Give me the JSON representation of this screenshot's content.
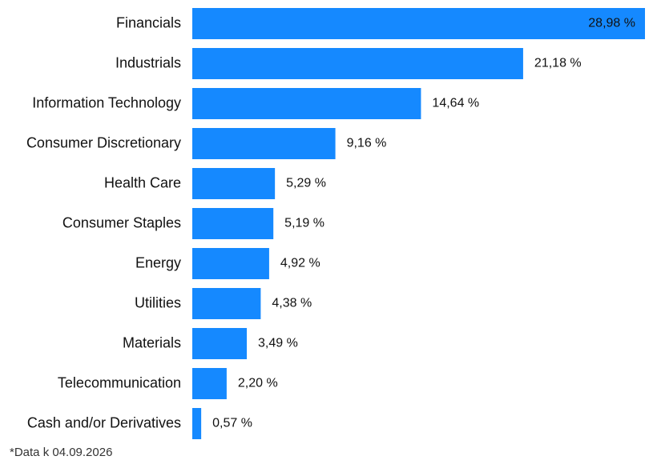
{
  "chart_data": {
    "type": "bar",
    "orientation": "horizontal",
    "categories": [
      "Financials",
      "Industrials",
      "Information Technology",
      "Consumer Discretionary",
      "Health Care",
      "Consumer Staples",
      "Energy",
      "Utilities",
      "Materials",
      "Telecommunication",
      "Cash and/or Derivatives"
    ],
    "values": [
      28.98,
      21.18,
      14.64,
      9.16,
      5.29,
      5.19,
      4.92,
      4.38,
      3.49,
      2.2,
      0.57
    ],
    "value_labels": [
      "28,98 %",
      "21,18 %",
      "14,64 %",
      "9,16 %",
      "5,29 %",
      "5,19 %",
      "4,92 %",
      "4,38 %",
      "3,49 %",
      "2,20 %",
      "0,57 %"
    ],
    "xlim": [
      0,
      28.98
    ],
    "grid": false,
    "bar_color": "#1589ff",
    "label_color": "#111111"
  },
  "footnote": "*Data k 04.09.2026"
}
